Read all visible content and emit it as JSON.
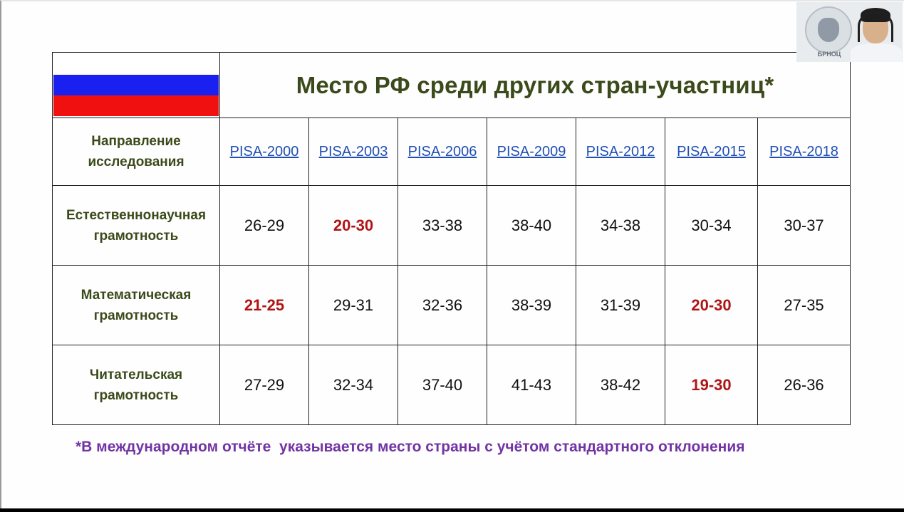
{
  "table": {
    "title": "Место РФ среди других стран-участниц*",
    "direction_header": [
      "Направление",
      "исследования"
    ],
    "columns": [
      "PISA-2000",
      "PISA-2003",
      "PISA-2006",
      "PISA-2009",
      "PISA-2012",
      "PISA-2015",
      "PISA-2018"
    ],
    "rows": [
      {
        "label": [
          "Естественнонаучная",
          "грамотность"
        ],
        "values": [
          "26-29",
          "20-30",
          "33-38",
          "38-40",
          "34-38",
          "30-34",
          "30-37"
        ],
        "highlighted": [
          false,
          true,
          false,
          false,
          false,
          false,
          false
        ]
      },
      {
        "label": [
          "Математическая",
          "грамотность"
        ],
        "values": [
          "21-25",
          "29-31",
          "32-36",
          "38-39",
          "31-39",
          "20-30",
          "27-35"
        ],
        "highlighted": [
          true,
          false,
          false,
          false,
          false,
          true,
          false
        ]
      },
      {
        "label": [
          "Читательская",
          "грамотность"
        ],
        "values": [
          "27-29",
          "32-34",
          "37-40",
          "41-43",
          "38-42",
          "19-30",
          "26-36"
        ],
        "highlighted": [
          false,
          false,
          false,
          false,
          false,
          true,
          false
        ]
      }
    ]
  },
  "footnote": "*В международном отчёте  указывается место страны с учётом стандартного отклонения",
  "webcam": {
    "logo_text": "БРНОЦ"
  },
  "colors": {
    "heading_text": "#3b4a1a",
    "link": "#1f4fb5",
    "highlight": "#b01515",
    "footnote": "#7234a4",
    "flag": [
      "#ffffff",
      "#1a20f0",
      "#f01010"
    ]
  }
}
